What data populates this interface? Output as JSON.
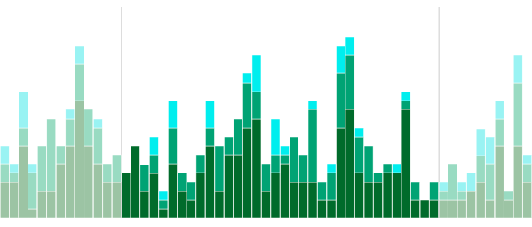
{
  "chart_data": {
    "type": "bar",
    "stacked": true,
    "tick_labels": false,
    "grid": false,
    "categories": [
      null,
      null,
      null,
      null,
      null,
      null,
      null,
      null,
      null,
      null,
      null,
      null,
      null,
      null,
      null,
      null,
      null,
      null,
      null,
      null,
      null,
      null,
      null,
      null,
      null,
      null,
      null,
      null,
      null,
      null,
      null,
      null,
      null,
      null,
      null,
      null,
      null,
      null,
      null,
      null,
      null,
      null,
      null,
      null,
      null,
      null,
      null,
      null,
      null,
      null,
      null,
      null,
      null,
      null,
      null,
      null,
      null
    ],
    "ylim": [
      0,
      260
    ],
    "yticks": [
      0,
      260
    ],
    "series": [
      {
        "colors": [
          "#9cc4a4",
          "#9cc4a4",
          "#9cc4a4",
          "#9cc4a4",
          "#9cc4a4",
          "#9cc4a4",
          "#9cc4a4",
          "#9cc4a4",
          "#9cc4a4",
          "#9cc4a4",
          "#9cc4a4",
          "#9cc4a4",
          "#9cc4a4",
          "#006b2b",
          "#006b2b",
          "#006b2b",
          "#006b2b",
          "#006b2b",
          "#006b2b",
          "#006b2b",
          "#006b2b",
          "#006b2b",
          "#006b2b",
          "#006b2b",
          "#006b2b",
          "#006b2b",
          "#006b2b",
          "#006b2b",
          "#006b2b",
          "#006b2b",
          "#006b2b",
          "#006b2b",
          "#006b2b",
          "#006b2b",
          "#006b2b",
          "#006b2b",
          "#006b2b",
          "#006b2b",
          "#006b2b",
          "#006b2b",
          "#006b2b",
          "#006b2b",
          "#006b2b",
          "#006b2b",
          "#006b2b",
          "#006b2b",
          "#006b2b",
          "#9cc4a4",
          "#9cc4a4",
          "#9cc4a4",
          "#9cc4a4",
          "#9cc4a4",
          "#9cc4a4",
          "#9cc4a4",
          "#9cc4a4",
          "#9cc4a4",
          "#9cc4a4"
        ],
        "values": [
          44,
          44,
          89,
          11,
          33,
          33,
          67,
          89,
          145,
          89,
          67,
          44,
          44,
          56,
          89,
          33,
          55,
          11,
          67,
          33,
          22,
          56,
          89,
          33,
          78,
          78,
          111,
          122,
          33,
          56,
          67,
          44,
          44,
          44,
          22,
          22,
          111,
          134,
          56,
          44,
          44,
          56,
          56,
          134,
          22,
          22,
          22,
          22,
          22,
          22,
          33,
          44,
          22,
          89,
          22,
          89,
          44
        ]
      },
      {
        "colors": [
          "#99dbc2",
          "#99dbc2",
          "#99dbc2",
          "#99dbc2",
          "#99dbc2",
          "#99dbc2",
          "#99dbc2",
          "#99dbc2",
          "#99dbc2",
          "#99dbc2",
          "#99dbc2",
          "#99dbc2",
          "#99dbc2",
          "#00a374",
          "#00a374",
          "#00a374",
          "#00a374",
          "#00a374",
          "#00a374",
          "#00a374",
          "#00a374",
          "#00a374",
          "#00a374",
          "#00a374",
          "#00a374",
          "#00a374",
          "#00a374",
          "#00a374",
          "#00a374",
          "#00a374",
          "#00a374",
          "#00a374",
          "#00a374",
          "#00a374",
          "#00a374",
          "#00a374",
          "#00a374",
          "#00a374",
          "#00a374",
          "#00a374",
          "#00a374",
          "#00a374",
          "#00a374",
          "#00a374",
          "#00a374",
          "#00a374",
          "#00a374",
          "#99dbc2",
          "#99dbc2",
          "#99dbc2",
          "#99dbc2",
          "#99dbc2",
          "#99dbc2",
          "#99dbc2",
          "#99dbc2",
          "#99dbc2",
          "#99dbc2"
        ],
        "values": [
          23,
          12,
          22,
          45,
          56,
          89,
          22,
          33,
          45,
          45,
          44,
          23,
          34,
          0,
          0,
          33,
          23,
          11,
          44,
          23,
          22,
          22,
          22,
          56,
          22,
          44,
          56,
          34,
          34,
          22,
          11,
          56,
          34,
          90,
          22,
          34,
          68,
          67,
          44,
          45,
          12,
          11,
          0,
          11,
          22,
          0,
          22,
          11,
          45,
          11,
          0,
          33,
          45,
          33,
          11,
          78,
          23
        ]
      },
      {
        "colors": [
          "#99f3f3",
          "#99f3f3",
          "#99f3f3",
          "#99f3f3",
          "#99f3f3",
          "#99f3f3",
          "#99f3f3",
          "#99f3f3",
          "#99f3f3",
          "#99f3f3",
          "#99f3f3",
          "#99f3f3",
          "#99f3f3",
          "#00eeee",
          "#00eeee",
          "#00eeee",
          "#00eeee",
          "#00eeee",
          "#00eeee",
          "#00eeee",
          "#00eeee",
          "#00eeee",
          "#00eeee",
          "#00eeee",
          "#00eeee",
          "#00eeee",
          "#00eeee",
          "#00eeee",
          "#00eeee",
          "#00eeee",
          "#00eeee",
          "#00eeee",
          "#00eeee",
          "#00eeee",
          "#00eeee",
          "#00eeee",
          "#00eeee",
          "#00eeee",
          "#00eeee",
          "#00eeee",
          "#00eeee",
          "#00eeee",
          "#00eeee",
          "#00eeee",
          "#00eeee",
          "#00eeee",
          "#00eeee",
          "#99f3f3",
          "#99f3f3",
          "#99f3f3",
          "#99f3f3",
          "#99f3f3",
          "#99f3f3",
          "#99f3f3",
          "#99f3f3",
          "#99f3f3",
          "#99f3f3"
        ],
        "values": [
          22,
          11,
          45,
          11,
          0,
          0,
          0,
          12,
          22,
          0,
          11,
          0,
          0,
          0,
          0,
          0,
          22,
          11,
          34,
          0,
          0,
          0,
          34,
          0,
          0,
          0,
          12,
          45,
          0,
          44,
          11,
          0,
          0,
          11,
          0,
          11,
          33,
          22,
          11,
          0,
          0,
          0,
          11,
          11,
          0,
          0,
          0,
          11,
          0,
          11,
          23,
          33,
          33,
          23,
          0,
          34,
          11
        ]
      }
    ]
  }
}
